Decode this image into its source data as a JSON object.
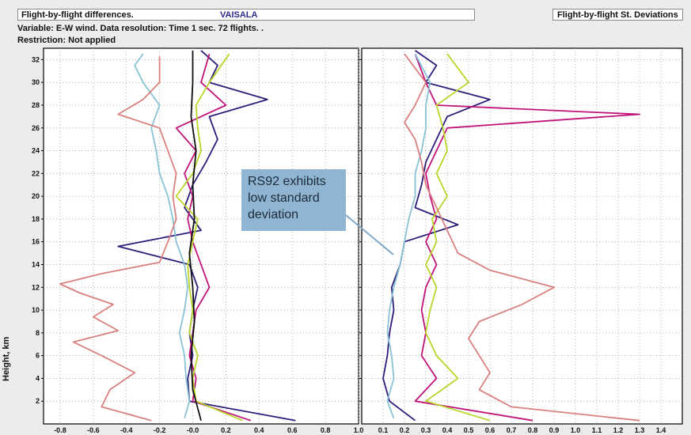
{
  "header": {
    "title": "Flight-by-flight differences.",
    "vendor": "VAISALA",
    "right_title": "Flight-by-flight St. Deviations"
  },
  "meta": {
    "variable_line": "Variable: E-W wind. Data resolution: Time 1 sec. 72 flights. .",
    "restriction_line": "Restriction: Not applied"
  },
  "annotation": {
    "text_lines": [
      "RS92 exhibits",
      "low standard",
      "deviation"
    ]
  },
  "colors": {
    "background": "#ececec",
    "plot_bg": "#ffffff",
    "grid": "#9a9a9a",
    "series": [
      "#2c1d7a",
      "#c0147a",
      "#b8d62a",
      "#87c3d4",
      "#d98080",
      "#111111"
    ],
    "annotation_box": "#8fb5d2",
    "annotation_line": "#7fa8c8"
  },
  "chart_data": [
    {
      "type": "line",
      "title": "Flight-by-flight differences.",
      "xlabel": "",
      "ylabel": "Height, km",
      "xlim": [
        -0.9,
        1.0
      ],
      "ylim": [
        0,
        33
      ],
      "x_ticks": [
        -0.8,
        -0.6,
        -0.4,
        -0.2,
        -0.0,
        0.2,
        0.4,
        0.6,
        0.8,
        1.0
      ],
      "x_tick_labels": [
        "-0.8",
        "-0.6",
        "-0.4",
        "-0.2",
        "-0.0",
        "0.2",
        "0.4",
        "0.6",
        "0.8",
        "1.0"
      ],
      "y_ticks": [
        2,
        4,
        6,
        8,
        10,
        12,
        14,
        16,
        18,
        20,
        22,
        24,
        26,
        28,
        30,
        32
      ],
      "grid": true,
      "series": [
        {
          "color": "#2c1d7a",
          "y": [
            0.3,
            2,
            4,
            6,
            8,
            10,
            12,
            14,
            15.6,
            17,
            19,
            21,
            23,
            25,
            27,
            28.5,
            30,
            31.5,
            32.8
          ],
          "x": [
            0.62,
            -0.02,
            -0.03,
            0.0,
            -0.02,
            0.0,
            0.03,
            -0.02,
            -0.45,
            0.05,
            -0.05,
            0.0,
            0.08,
            0.15,
            0.1,
            0.45,
            0.1,
            0.15,
            0.05
          ]
        },
        {
          "color": "#c0147a",
          "y": [
            0.3,
            2,
            4,
            6,
            8,
            10,
            12,
            14,
            16,
            18,
            20,
            22,
            24,
            26,
            28,
            30,
            32.5
          ],
          "x": [
            0.35,
            0.0,
            0.02,
            -0.02,
            0.0,
            0.02,
            0.1,
            0.05,
            0.0,
            -0.03,
            0.0,
            -0.05,
            0.02,
            -0.1,
            0.2,
            0.05,
            0.1
          ]
        },
        {
          "color": "#b8d62a",
          "y": [
            0.3,
            2,
            4,
            6,
            8,
            10,
            12,
            14,
            16,
            18,
            20,
            22,
            24,
            26,
            28,
            30,
            32.5
          ],
          "x": [
            0.3,
            0.02,
            0.0,
            0.03,
            -0.02,
            0.0,
            -0.02,
            -0.03,
            0.0,
            0.03,
            -0.1,
            0.0,
            0.05,
            0.03,
            0.02,
            0.1,
            0.22
          ]
        },
        {
          "color": "#87c3d4",
          "y": [
            0.5,
            2,
            4,
            6,
            8,
            10,
            12,
            14,
            16,
            18,
            20,
            22,
            24,
            26,
            28,
            30,
            31.5,
            32.5
          ],
          "x": [
            -0.05,
            -0.02,
            -0.04,
            -0.05,
            -0.08,
            -0.05,
            -0.03,
            -0.05,
            -0.1,
            -0.12,
            -0.15,
            -0.2,
            -0.22,
            -0.25,
            -0.2,
            -0.3,
            -0.35,
            -0.3
          ]
        },
        {
          "color": "#d98080",
          "y": [
            0.3,
            1.5,
            3,
            4.5,
            6,
            7.2,
            8.2,
            9.4,
            10.5,
            11.5,
            12.3,
            13.2,
            14.2,
            16,
            18,
            20,
            22,
            24,
            26,
            27.2,
            28.5,
            30,
            32.3
          ],
          "x": [
            -0.25,
            -0.55,
            -0.5,
            -0.35,
            -0.55,
            -0.72,
            -0.45,
            -0.6,
            -0.48,
            -0.68,
            -0.8,
            -0.55,
            -0.2,
            -0.15,
            -0.1,
            -0.12,
            -0.1,
            -0.15,
            -0.2,
            -0.45,
            -0.3,
            -0.2,
            -0.2
          ]
        },
        {
          "color": "#111111",
          "y": [
            0.3,
            3,
            6,
            9,
            12,
            15,
            18,
            21,
            24,
            27,
            30,
            32.8
          ],
          "x": [
            0.05,
            0.0,
            -0.01,
            0.01,
            0.0,
            -0.02,
            0.01,
            0.0,
            0.02,
            -0.01,
            0.0,
            0.0
          ]
        }
      ]
    },
    {
      "type": "line",
      "title": "Flight-by-flight St. Deviations",
      "xlabel": "",
      "ylabel": "",
      "xlim": [
        0.0,
        1.5
      ],
      "ylim": [
        0,
        33
      ],
      "x_ticks": [
        0.1,
        0.2,
        0.3,
        0.4,
        0.5,
        0.6,
        0.7,
        0.8,
        0.9,
        1.0,
        1.1,
        1.2,
        1.3,
        1.4
      ],
      "x_tick_labels": [
        "0.1",
        "0.2",
        "0.3",
        "0.4",
        "0.5",
        "0.6",
        "0.7",
        "0.8",
        "0.9",
        "1.0",
        "1.1",
        "1.2",
        "1.3",
        "1.4"
      ],
      "y_ticks": [
        2,
        4,
        6,
        8,
        10,
        12,
        14,
        16,
        18,
        20,
        22,
        24,
        26,
        28,
        30,
        32
      ],
      "grid": true,
      "series": [
        {
          "color": "#2c1d7a",
          "y": [
            0.3,
            2,
            4,
            6,
            8,
            10,
            12,
            14,
            16,
            17.5,
            19,
            21,
            23,
            25,
            27,
            28.5,
            30,
            31.5,
            32.8
          ],
          "x": [
            0.25,
            0.13,
            0.1,
            0.12,
            0.13,
            0.15,
            0.14,
            0.18,
            0.2,
            0.45,
            0.25,
            0.28,
            0.3,
            0.35,
            0.4,
            0.6,
            0.3,
            0.35,
            0.25
          ]
        },
        {
          "color": "#c0147a",
          "y": [
            0.3,
            2,
            4,
            6,
            8,
            10,
            12,
            14,
            16,
            18,
            20,
            22,
            24,
            26,
            27.2,
            28,
            30,
            32.5
          ],
          "x": [
            0.8,
            0.25,
            0.35,
            0.28,
            0.3,
            0.28,
            0.3,
            0.35,
            0.3,
            0.35,
            0.32,
            0.3,
            0.35,
            0.4,
            1.3,
            0.35,
            0.3,
            0.25
          ]
        },
        {
          "color": "#b8d62a",
          "y": [
            0.3,
            2,
            4,
            6,
            8,
            10,
            12,
            14,
            16,
            18,
            20,
            22,
            24,
            26,
            28,
            30,
            32.5
          ],
          "x": [
            0.6,
            0.3,
            0.45,
            0.35,
            0.3,
            0.32,
            0.35,
            0.3,
            0.35,
            0.33,
            0.4,
            0.35,
            0.4,
            0.38,
            0.35,
            0.5,
            0.4
          ]
        },
        {
          "color": "#87c3d4",
          "y": [
            0.5,
            2,
            4,
            6,
            8,
            10,
            12,
            14,
            16,
            18,
            20,
            22,
            24,
            26,
            28,
            30,
            32.5
          ],
          "x": [
            0.15,
            0.12,
            0.15,
            0.14,
            0.12,
            0.13,
            0.15,
            0.18,
            0.2,
            0.22,
            0.25,
            0.25,
            0.28,
            0.3,
            0.3,
            0.32,
            0.25
          ]
        },
        {
          "color": "#d98080",
          "y": [
            0.3,
            1.5,
            3,
            4.5,
            6,
            7.5,
            9,
            10.5,
            12,
            13.5,
            15,
            17,
            19,
            21,
            23,
            25,
            26.5,
            28,
            30,
            32.5
          ],
          "x": [
            1.3,
            0.7,
            0.55,
            0.6,
            0.55,
            0.5,
            0.55,
            0.75,
            0.9,
            0.6,
            0.45,
            0.4,
            0.35,
            0.3,
            0.28,
            0.25,
            0.2,
            0.25,
            0.3,
            0.2
          ]
        }
      ]
    }
  ]
}
